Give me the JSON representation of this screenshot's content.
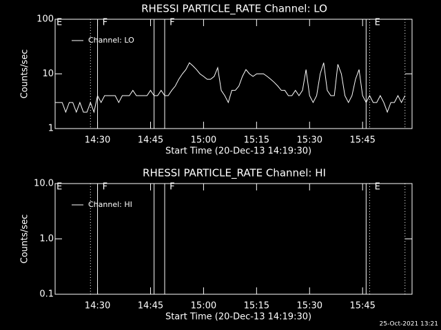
{
  "chart_data": [
    {
      "type": "line",
      "title": "RHESSI PARTICLE_RATE Channel: LO",
      "y_label": "Counts/sec",
      "x_label": "Start Time (20-Dec-13 14:19:30)",
      "log_y": true,
      "ylim": [
        1,
        100
      ],
      "yticks": [
        1,
        10,
        100
      ],
      "xlim": [
        "14:18",
        "15:59"
      ],
      "xticks": [
        "14:30",
        "14:45",
        "15:00",
        "15:15",
        "15:30",
        "15:45"
      ],
      "x": [
        "14:18",
        "14:19",
        "14:20",
        "14:21",
        "14:22",
        "14:23",
        "14:24",
        "14:25",
        "14:26",
        "14:27",
        "14:28",
        "14:29",
        "14:30",
        "14:31",
        "14:32",
        "14:33",
        "14:34",
        "14:35",
        "14:36",
        "14:37",
        "14:38",
        "14:39",
        "14:40",
        "14:41",
        "14:42",
        "14:43",
        "14:44",
        "14:45",
        "14:46",
        "14:47",
        "14:48",
        "14:49",
        "14:50",
        "14:51",
        "14:52",
        "14:53",
        "14:54",
        "14:55",
        "14:56",
        "14:57",
        "14:58",
        "14:59",
        "15:00",
        "15:01",
        "15:02",
        "15:03",
        "15:04",
        "15:05",
        "15:06",
        "15:07",
        "15:08",
        "15:09",
        "15:10",
        "15:11",
        "15:12",
        "15:13",
        "15:14",
        "15:15",
        "15:16",
        "15:17",
        "15:18",
        "15:19",
        "15:20",
        "15:21",
        "15:22",
        "15:23",
        "15:24",
        "15:25",
        "15:26",
        "15:27",
        "15:28",
        "15:29",
        "15:30",
        "15:31",
        "15:32",
        "15:33",
        "15:34",
        "15:35",
        "15:36",
        "15:37",
        "15:38",
        "15:39",
        "15:40",
        "15:41",
        "15:42",
        "15:43",
        "15:44",
        "15:45",
        "15:46",
        "15:47",
        "15:48",
        "15:49",
        "15:50",
        "15:51",
        "15:52",
        "15:53",
        "15:54",
        "15:55",
        "15:56",
        "15:57"
      ],
      "series": [
        {
          "name": "Channel: LO",
          "color": "#ffffff",
          "values": [
            3,
            3,
            3,
            2,
            3,
            3,
            2,
            3,
            2,
            2,
            3,
            2,
            4,
            3,
            4,
            4,
            4,
            4,
            3,
            4,
            4,
            4,
            5,
            4,
            4,
            4,
            4,
            5,
            4,
            4,
            5,
            4,
            4,
            5,
            6,
            8,
            10,
            12,
            16,
            14,
            12,
            10,
            9,
            8,
            8,
            9,
            13,
            5,
            4,
            3,
            5,
            5,
            6,
            9,
            12,
            10,
            9,
            10,
            10,
            10,
            9,
            8,
            7,
            6,
            5,
            5,
            4,
            4,
            5,
            4,
            5,
            12,
            4,
            3,
            4,
            10,
            16,
            5,
            4,
            4,
            15,
            10,
            4,
            3,
            4,
            8,
            12,
            4,
            3,
            4,
            3,
            3,
            4,
            3,
            2,
            3,
            3,
            4,
            3,
            4
          ]
        }
      ],
      "flags": [
        {
          "time": "14:28",
          "style": "dotted"
        },
        {
          "time": "14:30",
          "style": "solid"
        },
        {
          "time": "14:46",
          "style": "solid"
        },
        {
          "time": "14:49",
          "style": "solid"
        },
        {
          "time": "15:46",
          "style": "solid"
        },
        {
          "time": "15:47",
          "style": "dotted"
        },
        {
          "time": "15:57",
          "style": "dotted"
        }
      ],
      "flag_labels": [
        {
          "text": "E",
          "time": "14:18"
        },
        {
          "text": "F",
          "time": "14:31"
        },
        {
          "text": "F",
          "time": "14:50"
        },
        {
          "text": "E",
          "time": "15:48"
        }
      ]
    },
    {
      "type": "line",
      "title": "RHESSI PARTICLE_RATE Channel: HI",
      "y_label": "Counts/sec",
      "x_label": "Start Time (20-Dec-13 14:19:30)",
      "log_y": true,
      "ylim": [
        0.1,
        10
      ],
      "yticks": [
        0.1,
        {
          "value": 1,
          "label": "1.0"
        },
        {
          "value": 10,
          "label": "10.0"
        }
      ],
      "xlim": [
        "14:18",
        "15:59"
      ],
      "xticks": [
        "14:30",
        "14:45",
        "15:00",
        "15:15",
        "15:30",
        "15:45"
      ],
      "x": [],
      "series": [
        {
          "name": "Channel: HI",
          "color": "#ffffff",
          "values": []
        }
      ],
      "flags": [
        {
          "time": "14:28",
          "style": "dotted"
        },
        {
          "time": "14:30",
          "style": "solid"
        },
        {
          "time": "14:46",
          "style": "solid"
        },
        {
          "time": "14:49",
          "style": "solid"
        },
        {
          "time": "15:46",
          "style": "solid"
        },
        {
          "time": "15:47",
          "style": "dotted"
        },
        {
          "time": "15:57",
          "style": "dotted"
        }
      ],
      "flag_labels": [
        {
          "text": "E",
          "time": "14:18"
        },
        {
          "text": "F",
          "time": "14:31"
        },
        {
          "text": "F",
          "time": "14:50"
        },
        {
          "text": "E",
          "time": "15:48"
        }
      ]
    }
  ],
  "footer": "25-Oct-2021 13:21"
}
